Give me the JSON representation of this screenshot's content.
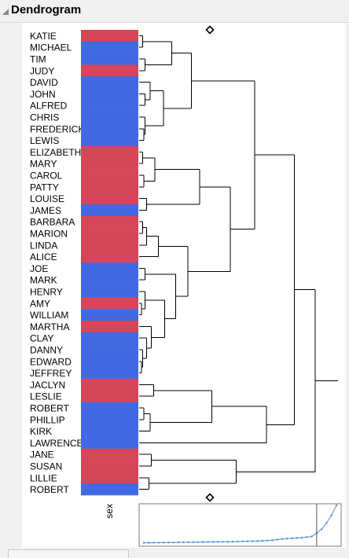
{
  "panel": {
    "title": "Dendrogram",
    "column_label": "sex"
  },
  "colors": {
    "F": "#d6455a",
    "M": "#4169e1",
    "tree": "#000000",
    "distance_line": "#4a90d9"
  },
  "rows": [
    {
      "name": "KATIE",
      "sex": "F"
    },
    {
      "name": "MICHAEL",
      "sex": "M"
    },
    {
      "name": "TIM",
      "sex": "M"
    },
    {
      "name": "JUDY",
      "sex": "F"
    },
    {
      "name": "DAVID",
      "sex": "M"
    },
    {
      "name": "JOHN",
      "sex": "M"
    },
    {
      "name": "ALFRED",
      "sex": "M"
    },
    {
      "name": "CHRIS",
      "sex": "M"
    },
    {
      "name": "FREDERICK",
      "sex": "M"
    },
    {
      "name": "LEWIS",
      "sex": "M"
    },
    {
      "name": "ELIZABETH",
      "sex": "F"
    },
    {
      "name": "MARY",
      "sex": "F"
    },
    {
      "name": "CAROL",
      "sex": "F"
    },
    {
      "name": "PATTY",
      "sex": "F"
    },
    {
      "name": "LOUISE",
      "sex": "F"
    },
    {
      "name": "JAMES",
      "sex": "M"
    },
    {
      "name": "BARBARA",
      "sex": "F"
    },
    {
      "name": "MARION",
      "sex": "F"
    },
    {
      "name": "LINDA",
      "sex": "F"
    },
    {
      "name": "ALICE",
      "sex": "F"
    },
    {
      "name": "JOE",
      "sex": "M"
    },
    {
      "name": "MARK",
      "sex": "M"
    },
    {
      "name": "HENRY",
      "sex": "M"
    },
    {
      "name": "AMY",
      "sex": "F"
    },
    {
      "name": "WILLIAM",
      "sex": "M"
    },
    {
      "name": "MARTHA",
      "sex": "F"
    },
    {
      "name": "CLAY",
      "sex": "M"
    },
    {
      "name": "DANNY",
      "sex": "M"
    },
    {
      "name": "EDWARD",
      "sex": "M"
    },
    {
      "name": "JEFFREY",
      "sex": "M"
    },
    {
      "name": "JACLYN",
      "sex": "F"
    },
    {
      "name": "LESLIE",
      "sex": "F"
    },
    {
      "name": "ROBERT",
      "sex": "M"
    },
    {
      "name": "PHILLIP",
      "sex": "M"
    },
    {
      "name": "KIRK",
      "sex": "M"
    },
    {
      "name": "LAWRENCE",
      "sex": "M"
    },
    {
      "name": "JANE",
      "sex": "F"
    },
    {
      "name": "SUSAN",
      "sex": "F"
    },
    {
      "name": "LILLIE",
      "sex": "F"
    },
    {
      "name": "ROBERT",
      "sex": "M"
    }
  ],
  "distance_plot": {
    "values": [
      0.4,
      0.5,
      0.6,
      0.7,
      0.8,
      0.9,
      1.0,
      1.1,
      1.2,
      1.3,
      1.4,
      1.5,
      1.6,
      1.7,
      1.8,
      1.9,
      2.0,
      2.1,
      2.2,
      2.4,
      2.6,
      2.8,
      3.0,
      3.3,
      3.6,
      4.0,
      4.5,
      5.5,
      6.5,
      7.0,
      7.5,
      8.0,
      8.5,
      9.5,
      10.5,
      16,
      22,
      32,
      44,
      60
    ],
    "ymax": 60,
    "cut_index": 35
  }
}
